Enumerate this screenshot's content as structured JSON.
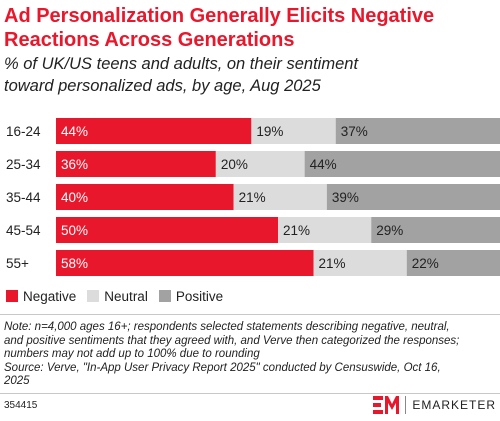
{
  "title_lines": [
    "Ad Personalization Generally Elicits Negative",
    "Reactions Across Generations"
  ],
  "subtitle_lines": [
    "% of UK/US teens and adults, on their sentiment",
    "toward personalized ads, by age, Aug 2025"
  ],
  "colors": {
    "title": "#e8172c",
    "negative": "#e8172c",
    "neutral": "#dcdcdc",
    "positive": "#a2a2a2"
  },
  "chart_data": {
    "type": "bar",
    "orientation": "horizontal",
    "stacked": true,
    "categories": [
      "16-24",
      "25-34",
      "35-44",
      "45-54",
      "55+"
    ],
    "series": [
      {
        "name": "Negative",
        "values": [
          44,
          36,
          40,
          50,
          58
        ],
        "labels": [
          "44%",
          "36%",
          "40%",
          "50%",
          "58%"
        ]
      },
      {
        "name": "Neutral",
        "values": [
          19,
          20,
          21,
          21,
          21
        ],
        "labels": [
          "19%",
          "20%",
          "21%",
          "21%",
          "21%"
        ]
      },
      {
        "name": "Positive",
        "values": [
          37,
          44,
          39,
          29,
          22
        ],
        "labels": [
          "37%",
          "44%",
          "39%",
          "29%",
          "22%"
        ]
      }
    ],
    "xlim": [
      0,
      100
    ],
    "legend_position": "bottom-left",
    "grid": false
  },
  "legend": [
    {
      "label": "Negative",
      "color": "#e8172c"
    },
    {
      "label": "Neutral",
      "color": "#dcdcdc"
    },
    {
      "label": "Positive",
      "color": "#a2a2a2"
    }
  ],
  "note_lines": [
    "Note: n=4,000 ages 16+; respondents selected statements describing negative, neutral,",
    "and positive sentiments that they agreed with, and Verve then categorized the responses;",
    "numbers may not add up to 100% due to rounding",
    "Source: Verve, \"In-App User Privacy Report 2025\" conducted by Censuswide, Oct 16,",
    "2025"
  ],
  "chart_id": "354415",
  "brand": {
    "mark": "EM",
    "name": "EMARKETER"
  }
}
